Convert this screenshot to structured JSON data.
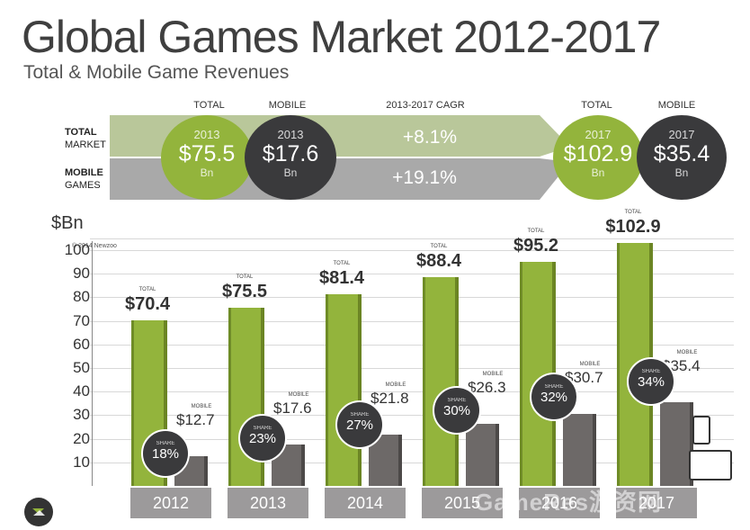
{
  "header": {
    "title": "Global Games Market 2012-2017",
    "subtitle": "Total & Mobile Game Revenues"
  },
  "summary": {
    "col_total_left": "TOTAL",
    "col_mobile_left": "MOBILE",
    "col_cagr": "2013-2017 CAGR",
    "col_total_right": "TOTAL",
    "col_mobile_right": "MOBILE",
    "row_total_line1": "TOTAL",
    "row_total_line2": "MARKET",
    "row_mobile_line1": "MOBILE",
    "row_mobile_line2": "GAMES",
    "left_total": {
      "year": "2013",
      "value": "$75.5",
      "unit": "Bn"
    },
    "left_mobile": {
      "year": "2013",
      "value": "$17.6",
      "unit": "Bn"
    },
    "right_total": {
      "year": "2017",
      "value": "$102.9",
      "unit": "Bn"
    },
    "right_mobile": {
      "year": "2017",
      "value": "$35.4",
      "unit": "Bn"
    },
    "cagr_total": "+8.1%",
    "cagr_mobile": "+19.1%",
    "colors": {
      "green": "#93b43c",
      "dark": "#3a3a3c",
      "band_green": "#b9c79a",
      "band_gray": "#a9a9a9"
    }
  },
  "chart_data": {
    "type": "bar",
    "ylabel": "$Bn",
    "copyright": "© 2014 Newzoo",
    "ylim": [
      0,
      110
    ],
    "yticks": [
      10,
      20,
      30,
      40,
      50,
      60,
      70,
      80,
      90,
      100
    ],
    "categories": [
      "2012",
      "2013",
      "2014",
      "2015",
      "2016",
      "2017"
    ],
    "series": [
      {
        "name": "TOTAL",
        "values": [
          70.4,
          75.5,
          81.4,
          88.4,
          95.2,
          102.9
        ],
        "labels": [
          "$70.4",
          "$75.5",
          "$81.4",
          "$88.4",
          "$95.2",
          "$102.9"
        ],
        "color": "#93b43c"
      },
      {
        "name": "MOBILE",
        "values": [
          12.7,
          17.6,
          21.8,
          26.3,
          30.7,
          35.4
        ],
        "labels": [
          "$12.7",
          "$17.6",
          "$21.8",
          "$26.3",
          "$30.7",
          "$35.4"
        ],
        "color": "#6d6968"
      }
    ],
    "share": {
      "label": "SHARE",
      "values": [
        "18%",
        "23%",
        "27%",
        "30%",
        "32%",
        "34%"
      ]
    }
  },
  "footer": {
    "watermark": "GameRes游资网"
  }
}
